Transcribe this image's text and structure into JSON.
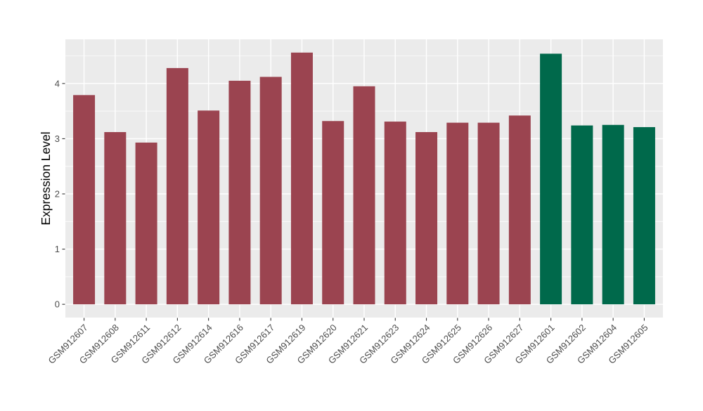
{
  "chart_data": {
    "type": "bar",
    "title": "",
    "xlabel": "",
    "ylabel": "Expression Level",
    "ylim": [
      -0.24,
      4.8
    ],
    "yticks": [
      0,
      1,
      2,
      3,
      4
    ],
    "grid": true,
    "legend_position": "none",
    "categories": [
      "GSM912607",
      "GSM912608",
      "GSM912611",
      "GSM912612",
      "GSM912614",
      "GSM912616",
      "GSM912617",
      "GSM912619",
      "GSM912620",
      "GSM912621",
      "GSM912623",
      "GSM912624",
      "GSM912625",
      "GSM912626",
      "GSM912627",
      "GSM912601",
      "GSM912602",
      "GSM912604",
      "GSM912605"
    ],
    "values": [
      3.79,
      3.12,
      2.93,
      4.28,
      3.51,
      4.05,
      4.12,
      4.56,
      3.32,
      3.95,
      3.31,
      3.12,
      3.29,
      3.29,
      3.42,
      4.54,
      3.24,
      3.25,
      3.21
    ],
    "groups": [
      "maroon",
      "maroon",
      "maroon",
      "maroon",
      "maroon",
      "maroon",
      "maroon",
      "maroon",
      "maroon",
      "maroon",
      "maroon",
      "maroon",
      "maroon",
      "maroon",
      "maroon",
      "green",
      "green",
      "green",
      "green"
    ],
    "group_colors": {
      "maroon": "#9B4450",
      "green": "#00694B"
    },
    "colors": {
      "panel_background": "#EBEBEB",
      "grid": "#FFFFFF",
      "tick": "#333333",
      "tick_label": "#4D4D4D",
      "axis_title": "#000000"
    }
  }
}
